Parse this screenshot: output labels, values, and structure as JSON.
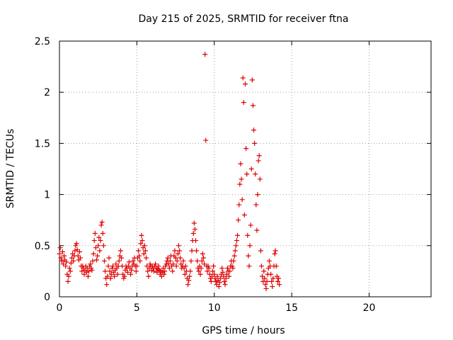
{
  "chart_data": {
    "type": "scatter",
    "title": "Day 215 of 2025, SRMTID for receiver ftna",
    "xlabel": "GPS time / hours",
    "ylabel": "SRMTID / TECUs",
    "xlim": [
      0,
      24
    ],
    "ylim": [
      0,
      2.5
    ],
    "x_ticks": [
      0,
      5,
      10,
      15,
      20
    ],
    "x_tick_labels": [
      "0",
      "5",
      "10",
      "15",
      "20"
    ],
    "y_ticks": [
      0,
      0.5,
      1,
      1.5,
      2,
      2.5
    ],
    "y_tick_labels": [
      "0",
      "0.5",
      "1",
      "1.5",
      "2",
      "2.5"
    ],
    "grid": true,
    "marker": "+",
    "series": [
      {
        "name": "SRMTID",
        "color": "#e00000",
        "points": [
          [
            0.0,
            0.42
          ],
          [
            0.05,
            0.48
          ],
          [
            0.1,
            0.38
          ],
          [
            0.15,
            0.35
          ],
          [
            0.2,
            0.44
          ],
          [
            0.25,
            0.32
          ],
          [
            0.3,
            0.4
          ],
          [
            0.35,
            0.36
          ],
          [
            0.4,
            0.3
          ],
          [
            0.45,
            0.34
          ],
          [
            0.5,
            0.22
          ],
          [
            0.55,
            0.15
          ],
          [
            0.6,
            0.2
          ],
          [
            0.65,
            0.28
          ],
          [
            0.7,
            0.25
          ],
          [
            0.75,
            0.33
          ],
          [
            0.8,
            0.38
          ],
          [
            0.85,
            0.42
          ],
          [
            0.9,
            0.35
          ],
          [
            0.95,
            0.4
          ],
          [
            1.0,
            0.45
          ],
          [
            1.05,
            0.5
          ],
          [
            1.1,
            0.52
          ],
          [
            1.15,
            0.46
          ],
          [
            1.2,
            0.4
          ],
          [
            1.25,
            0.36
          ],
          [
            1.3,
            0.44
          ],
          [
            1.35,
            0.38
          ],
          [
            1.4,
            0.3
          ],
          [
            1.45,
            0.25
          ],
          [
            1.5,
            0.3
          ],
          [
            1.55,
            0.28
          ],
          [
            1.6,
            0.22
          ],
          [
            1.65,
            0.26
          ],
          [
            1.7,
            0.3
          ],
          [
            1.75,
            0.24
          ],
          [
            1.8,
            0.28
          ],
          [
            1.85,
            0.2
          ],
          [
            1.9,
            0.25
          ],
          [
            1.95,
            0.3
          ],
          [
            2.0,
            0.32
          ],
          [
            2.05,
            0.28
          ],
          [
            2.1,
            0.26
          ],
          [
            2.15,
            0.35
          ],
          [
            2.2,
            0.42
          ],
          [
            2.25,
            0.55
          ],
          [
            2.3,
            0.62
          ],
          [
            2.35,
            0.48
          ],
          [
            2.4,
            0.36
          ],
          [
            2.45,
            0.4
          ],
          [
            2.5,
            0.5
          ],
          [
            2.55,
            0.58
          ],
          [
            2.6,
            0.45
          ],
          [
            2.65,
            0.55
          ],
          [
            2.7,
            0.7
          ],
          [
            2.75,
            0.73
          ],
          [
            2.8,
            0.62
          ],
          [
            2.85,
            0.5
          ],
          [
            2.9,
            0.35
          ],
          [
            2.95,
            0.25
          ],
          [
            3.0,
            0.18
          ],
          [
            3.05,
            0.12
          ],
          [
            3.1,
            0.2
          ],
          [
            3.15,
            0.3
          ],
          [
            3.2,
            0.38
          ],
          [
            3.25,
            0.25
          ],
          [
            3.3,
            0.18
          ],
          [
            3.35,
            0.22
          ],
          [
            3.4,
            0.28
          ],
          [
            3.45,
            0.3
          ],
          [
            3.5,
            0.24
          ],
          [
            3.55,
            0.2
          ],
          [
            3.6,
            0.26
          ],
          [
            3.65,
            0.32
          ],
          [
            3.7,
            0.28
          ],
          [
            3.75,
            0.22
          ],
          [
            3.8,
            0.3
          ],
          [
            3.85,
            0.35
          ],
          [
            3.9,
            0.4
          ],
          [
            3.95,
            0.45
          ],
          [
            4.0,
            0.38
          ],
          [
            4.05,
            0.3
          ],
          [
            4.1,
            0.22
          ],
          [
            4.15,
            0.18
          ],
          [
            4.2,
            0.2
          ],
          [
            4.25,
            0.26
          ],
          [
            4.3,
            0.3
          ],
          [
            4.35,
            0.28
          ],
          [
            4.4,
            0.24
          ],
          [
            4.45,
            0.3
          ],
          [
            4.5,
            0.34
          ],
          [
            4.55,
            0.28
          ],
          [
            4.6,
            0.22
          ],
          [
            4.65,
            0.26
          ],
          [
            4.7,
            0.3
          ],
          [
            4.75,
            0.35
          ],
          [
            4.8,
            0.32
          ],
          [
            4.85,
            0.38
          ],
          [
            4.9,
            0.3
          ],
          [
            4.95,
            0.25
          ],
          [
            5.0,
            0.3
          ],
          [
            5.05,
            0.38
          ],
          [
            5.1,
            0.45
          ],
          [
            5.15,
            0.4
          ],
          [
            5.2,
            0.35
          ],
          [
            5.25,
            0.52
          ],
          [
            5.3,
            0.6
          ],
          [
            5.35,
            0.55
          ],
          [
            5.4,
            0.48
          ],
          [
            5.45,
            0.42
          ],
          [
            5.5,
            0.5
          ],
          [
            5.55,
            0.45
          ],
          [
            5.6,
            0.38
          ],
          [
            5.65,
            0.3
          ],
          [
            5.7,
            0.25
          ],
          [
            5.75,
            0.2
          ],
          [
            5.8,
            0.28
          ],
          [
            5.85,
            0.32
          ],
          [
            5.9,
            0.3
          ],
          [
            5.95,
            0.26
          ],
          [
            6.0,
            0.3
          ],
          [
            6.05,
            0.28
          ],
          [
            6.1,
            0.25
          ],
          [
            6.15,
            0.3
          ],
          [
            6.2,
            0.32
          ],
          [
            6.25,
            0.28
          ],
          [
            6.3,
            0.24
          ],
          [
            6.35,
            0.27
          ],
          [
            6.4,
            0.3
          ],
          [
            6.45,
            0.26
          ],
          [
            6.5,
            0.22
          ],
          [
            6.55,
            0.25
          ],
          [
            6.6,
            0.2
          ],
          [
            6.65,
            0.24
          ],
          [
            6.7,
            0.28
          ],
          [
            6.75,
            0.22
          ],
          [
            6.8,
            0.25
          ],
          [
            6.85,
            0.3
          ],
          [
            6.9,
            0.32
          ],
          [
            6.95,
            0.35
          ],
          [
            7.0,
            0.38
          ],
          [
            7.05,
            0.32
          ],
          [
            7.1,
            0.28
          ],
          [
            7.15,
            0.35
          ],
          [
            7.2,
            0.4
          ],
          [
            7.25,
            0.3
          ],
          [
            7.3,
            0.25
          ],
          [
            7.35,
            0.32
          ],
          [
            7.4,
            0.4
          ],
          [
            7.45,
            0.45
          ],
          [
            7.5,
            0.38
          ],
          [
            7.55,
            0.3
          ],
          [
            7.6,
            0.35
          ],
          [
            7.65,
            0.42
          ],
          [
            7.7,
            0.5
          ],
          [
            7.75,
            0.45
          ],
          [
            7.8,
            0.38
          ],
          [
            7.85,
            0.32
          ],
          [
            7.9,
            0.28
          ],
          [
            7.95,
            0.3
          ],
          [
            8.0,
            0.35
          ],
          [
            8.05,
            0.28
          ],
          [
            8.1,
            0.22
          ],
          [
            8.15,
            0.3
          ],
          [
            8.2,
            0.25
          ],
          [
            8.25,
            0.18
          ],
          [
            8.3,
            0.12
          ],
          [
            8.35,
            0.16
          ],
          [
            8.4,
            0.2
          ],
          [
            8.45,
            0.25
          ],
          [
            8.5,
            0.35
          ],
          [
            8.55,
            0.45
          ],
          [
            8.6,
            0.55
          ],
          [
            8.65,
            0.62
          ],
          [
            8.7,
            0.72
          ],
          [
            8.75,
            0.66
          ],
          [
            8.8,
            0.55
          ],
          [
            8.85,
            0.45
          ],
          [
            8.9,
            0.35
          ],
          [
            8.95,
            0.28
          ],
          [
            9.0,
            0.25
          ],
          [
            9.05,
            0.3
          ],
          [
            9.1,
            0.22
          ],
          [
            9.15,
            0.28
          ],
          [
            9.2,
            0.35
          ],
          [
            9.25,
            0.42
          ],
          [
            9.3,
            0.38
          ],
          [
            9.35,
            0.32
          ],
          [
            9.4,
            2.37
          ],
          [
            9.45,
            1.53
          ],
          [
            9.5,
            0.3
          ],
          [
            9.55,
            0.25
          ],
          [
            9.6,
            0.3
          ],
          [
            9.65,
            0.28
          ],
          [
            9.7,
            0.22
          ],
          [
            9.75,
            0.18
          ],
          [
            9.8,
            0.15
          ],
          [
            9.85,
            0.2
          ],
          [
            9.9,
            0.25
          ],
          [
            9.95,
            0.3
          ],
          [
            10.0,
            0.22
          ],
          [
            10.05,
            0.18
          ],
          [
            10.1,
            0.15
          ],
          [
            10.15,
            0.12
          ],
          [
            10.2,
            0.2
          ],
          [
            10.25,
            0.16
          ],
          [
            10.3,
            0.1
          ],
          [
            10.35,
            0.14
          ],
          [
            10.4,
            0.18
          ],
          [
            10.45,
            0.22
          ],
          [
            10.5,
            0.28
          ],
          [
            10.55,
            0.24
          ],
          [
            10.6,
            0.2
          ],
          [
            10.65,
            0.15
          ],
          [
            10.7,
            0.12
          ],
          [
            10.75,
            0.18
          ],
          [
            10.8,
            0.22
          ],
          [
            10.85,
            0.28
          ],
          [
            10.9,
            0.25
          ],
          [
            10.95,
            0.2
          ],
          [
            11.0,
            0.25
          ],
          [
            11.05,
            0.3
          ],
          [
            11.1,
            0.35
          ],
          [
            11.15,
            0.3
          ],
          [
            11.2,
            0.28
          ],
          [
            11.25,
            0.35
          ],
          [
            11.3,
            0.4
          ],
          [
            11.35,
            0.45
          ],
          [
            11.4,
            0.5
          ],
          [
            11.45,
            0.55
          ],
          [
            11.5,
            0.6
          ],
          [
            11.55,
            0.75
          ],
          [
            11.6,
            0.9
          ],
          [
            11.65,
            1.1
          ],
          [
            11.7,
            1.3
          ],
          [
            11.75,
            1.15
          ],
          [
            11.8,
            0.95
          ],
          [
            11.85,
            2.14
          ],
          [
            11.9,
            1.9
          ],
          [
            11.95,
            0.8
          ],
          [
            12.0,
            2.08
          ],
          [
            12.05,
            1.45
          ],
          [
            12.1,
            1.2
          ],
          [
            12.15,
            0.6
          ],
          [
            12.2,
            0.4
          ],
          [
            12.25,
            0.3
          ],
          [
            12.3,
            0.5
          ],
          [
            12.35,
            0.7
          ],
          [
            12.4,
            1.25
          ],
          [
            12.45,
            2.12
          ],
          [
            12.5,
            1.87
          ],
          [
            12.55,
            1.63
          ],
          [
            12.6,
            1.5
          ],
          [
            12.65,
            1.2
          ],
          [
            12.7,
            0.9
          ],
          [
            12.75,
            0.65
          ],
          [
            12.8,
            1.0
          ],
          [
            12.85,
            1.33
          ],
          [
            12.9,
            1.38
          ],
          [
            12.95,
            1.15
          ],
          [
            13.0,
            0.45
          ],
          [
            13.05,
            0.3
          ],
          [
            13.1,
            0.2
          ],
          [
            13.15,
            0.15
          ],
          [
            13.2,
            0.25
          ],
          [
            13.25,
            0.18
          ],
          [
            13.3,
            0.12
          ],
          [
            13.35,
            0.08
          ],
          [
            13.4,
            0.15
          ],
          [
            13.45,
            0.22
          ],
          [
            13.5,
            0.28
          ],
          [
            13.55,
            0.35
          ],
          [
            13.6,
            0.3
          ],
          [
            13.65,
            0.22
          ],
          [
            13.7,
            0.15
          ],
          [
            13.75,
            0.1
          ],
          [
            13.8,
            0.18
          ],
          [
            13.85,
            0.3
          ],
          [
            13.9,
            0.42
          ],
          [
            13.95,
            0.45
          ],
          [
            14.0,
            0.3
          ],
          [
            14.05,
            0.2
          ],
          [
            14.1,
            0.15
          ],
          [
            14.15,
            0.18
          ],
          [
            14.2,
            0.12
          ]
        ]
      }
    ]
  }
}
